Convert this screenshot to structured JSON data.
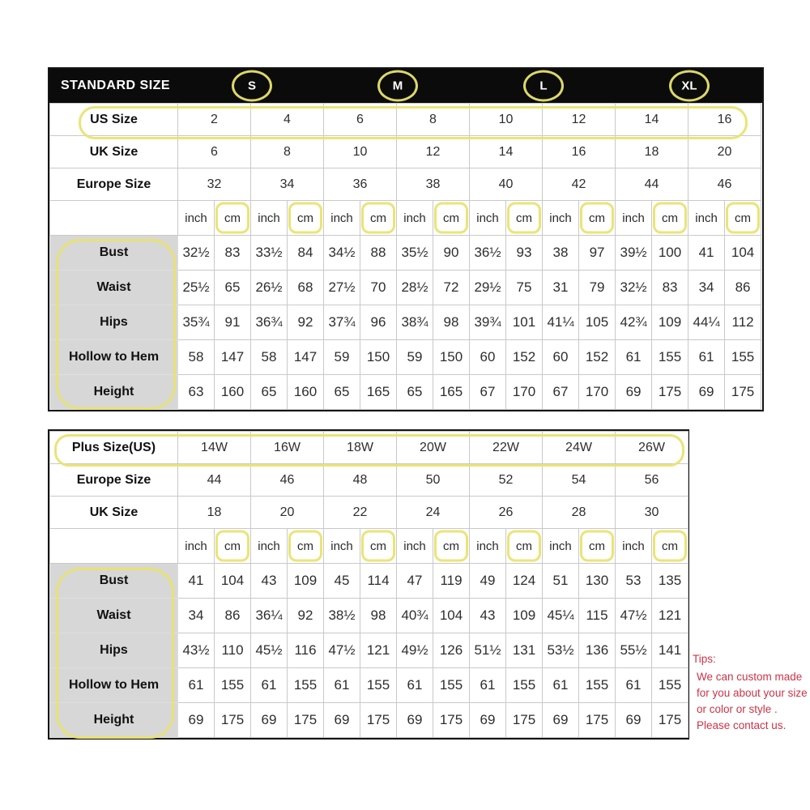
{
  "colors": {
    "accent_yellow": "#e9e370",
    "header_black": "#0b0b0b",
    "label_gray": "#d7d7d7",
    "tips_red": "#cc3347"
  },
  "standard_table": {
    "title": "STANDARD SIZE",
    "size_groups": [
      "S",
      "M",
      "L",
      "XL"
    ],
    "size_rows": [
      {
        "label": "US Size",
        "values": [
          "2",
          "4",
          "6",
          "8",
          "10",
          "12",
          "14",
          "16"
        ]
      },
      {
        "label": "UK Size",
        "values": [
          "6",
          "8",
          "10",
          "12",
          "14",
          "16",
          "18",
          "20"
        ]
      },
      {
        "label": "Europe Size",
        "values": [
          "32",
          "34",
          "36",
          "38",
          "40",
          "42",
          "44",
          "46"
        ]
      }
    ],
    "units": {
      "inch": "inch",
      "cm": "cm",
      "pairs": 8
    },
    "measure_rows": [
      {
        "label": "Bust",
        "values": [
          "32½",
          "83",
          "33½",
          "84",
          "34½",
          "88",
          "35½",
          "90",
          "36½",
          "93",
          "38",
          "97",
          "39½",
          "100",
          "41",
          "104"
        ]
      },
      {
        "label": "Waist",
        "values": [
          "25½",
          "65",
          "26½",
          "68",
          "27½",
          "70",
          "28½",
          "72",
          "29½",
          "75",
          "31",
          "79",
          "32½",
          "83",
          "34",
          "86"
        ]
      },
      {
        "label": "Hips",
        "values": [
          "35¾",
          "91",
          "36¾",
          "92",
          "37¾",
          "96",
          "38¾",
          "98",
          "39¾",
          "101",
          "41¼",
          "105",
          "42¾",
          "109",
          "44¼",
          "112"
        ]
      },
      {
        "label": "Hollow to Hem",
        "values": [
          "58",
          "147",
          "58",
          "147",
          "59",
          "150",
          "59",
          "150",
          "60",
          "152",
          "60",
          "152",
          "61",
          "155",
          "61",
          "155"
        ]
      },
      {
        "label": "Height",
        "values": [
          "63",
          "160",
          "65",
          "160",
          "65",
          "165",
          "65",
          "165",
          "67",
          "170",
          "67",
          "170",
          "69",
          "175",
          "69",
          "175"
        ]
      }
    ]
  },
  "plus_table": {
    "size_rows": [
      {
        "label": "Plus Size(US)",
        "values": [
          "14W",
          "16W",
          "18W",
          "20W",
          "22W",
          "24W",
          "26W"
        ]
      },
      {
        "label": "Europe Size",
        "values": [
          "44",
          "46",
          "48",
          "50",
          "52",
          "54",
          "56"
        ]
      },
      {
        "label": "UK Size",
        "values": [
          "18",
          "20",
          "22",
          "24",
          "26",
          "28",
          "30"
        ]
      }
    ],
    "units": {
      "inch": "inch",
      "cm": "cm",
      "pairs": 7
    },
    "measure_rows": [
      {
        "label": "Bust",
        "values": [
          "41",
          "104",
          "43",
          "109",
          "45",
          "114",
          "47",
          "119",
          "49",
          "124",
          "51",
          "130",
          "53",
          "135"
        ]
      },
      {
        "label": "Waist",
        "values": [
          "34",
          "86",
          "36¼",
          "92",
          "38½",
          "98",
          "40¾",
          "104",
          "43",
          "109",
          "45¼",
          "115",
          "47½",
          "121"
        ]
      },
      {
        "label": "Hips",
        "values": [
          "43½",
          "110",
          "45½",
          "116",
          "47½",
          "121",
          "49½",
          "126",
          "51½",
          "131",
          "53½",
          "136",
          "55½",
          "141"
        ]
      },
      {
        "label": "Hollow to Hem",
        "values": [
          "61",
          "155",
          "61",
          "155",
          "61",
          "155",
          "61",
          "155",
          "61",
          "155",
          "61",
          "155",
          "61",
          "155"
        ]
      },
      {
        "label": "Height",
        "values": [
          "69",
          "175",
          "69",
          "175",
          "69",
          "175",
          "69",
          "175",
          "69",
          "175",
          "69",
          "175",
          "69",
          "175"
        ]
      }
    ]
  },
  "tips": {
    "title": "Tips:",
    "lines": [
      "We can custom made",
      "for you about your size",
      "or color or style .",
      "Please contact us."
    ]
  }
}
